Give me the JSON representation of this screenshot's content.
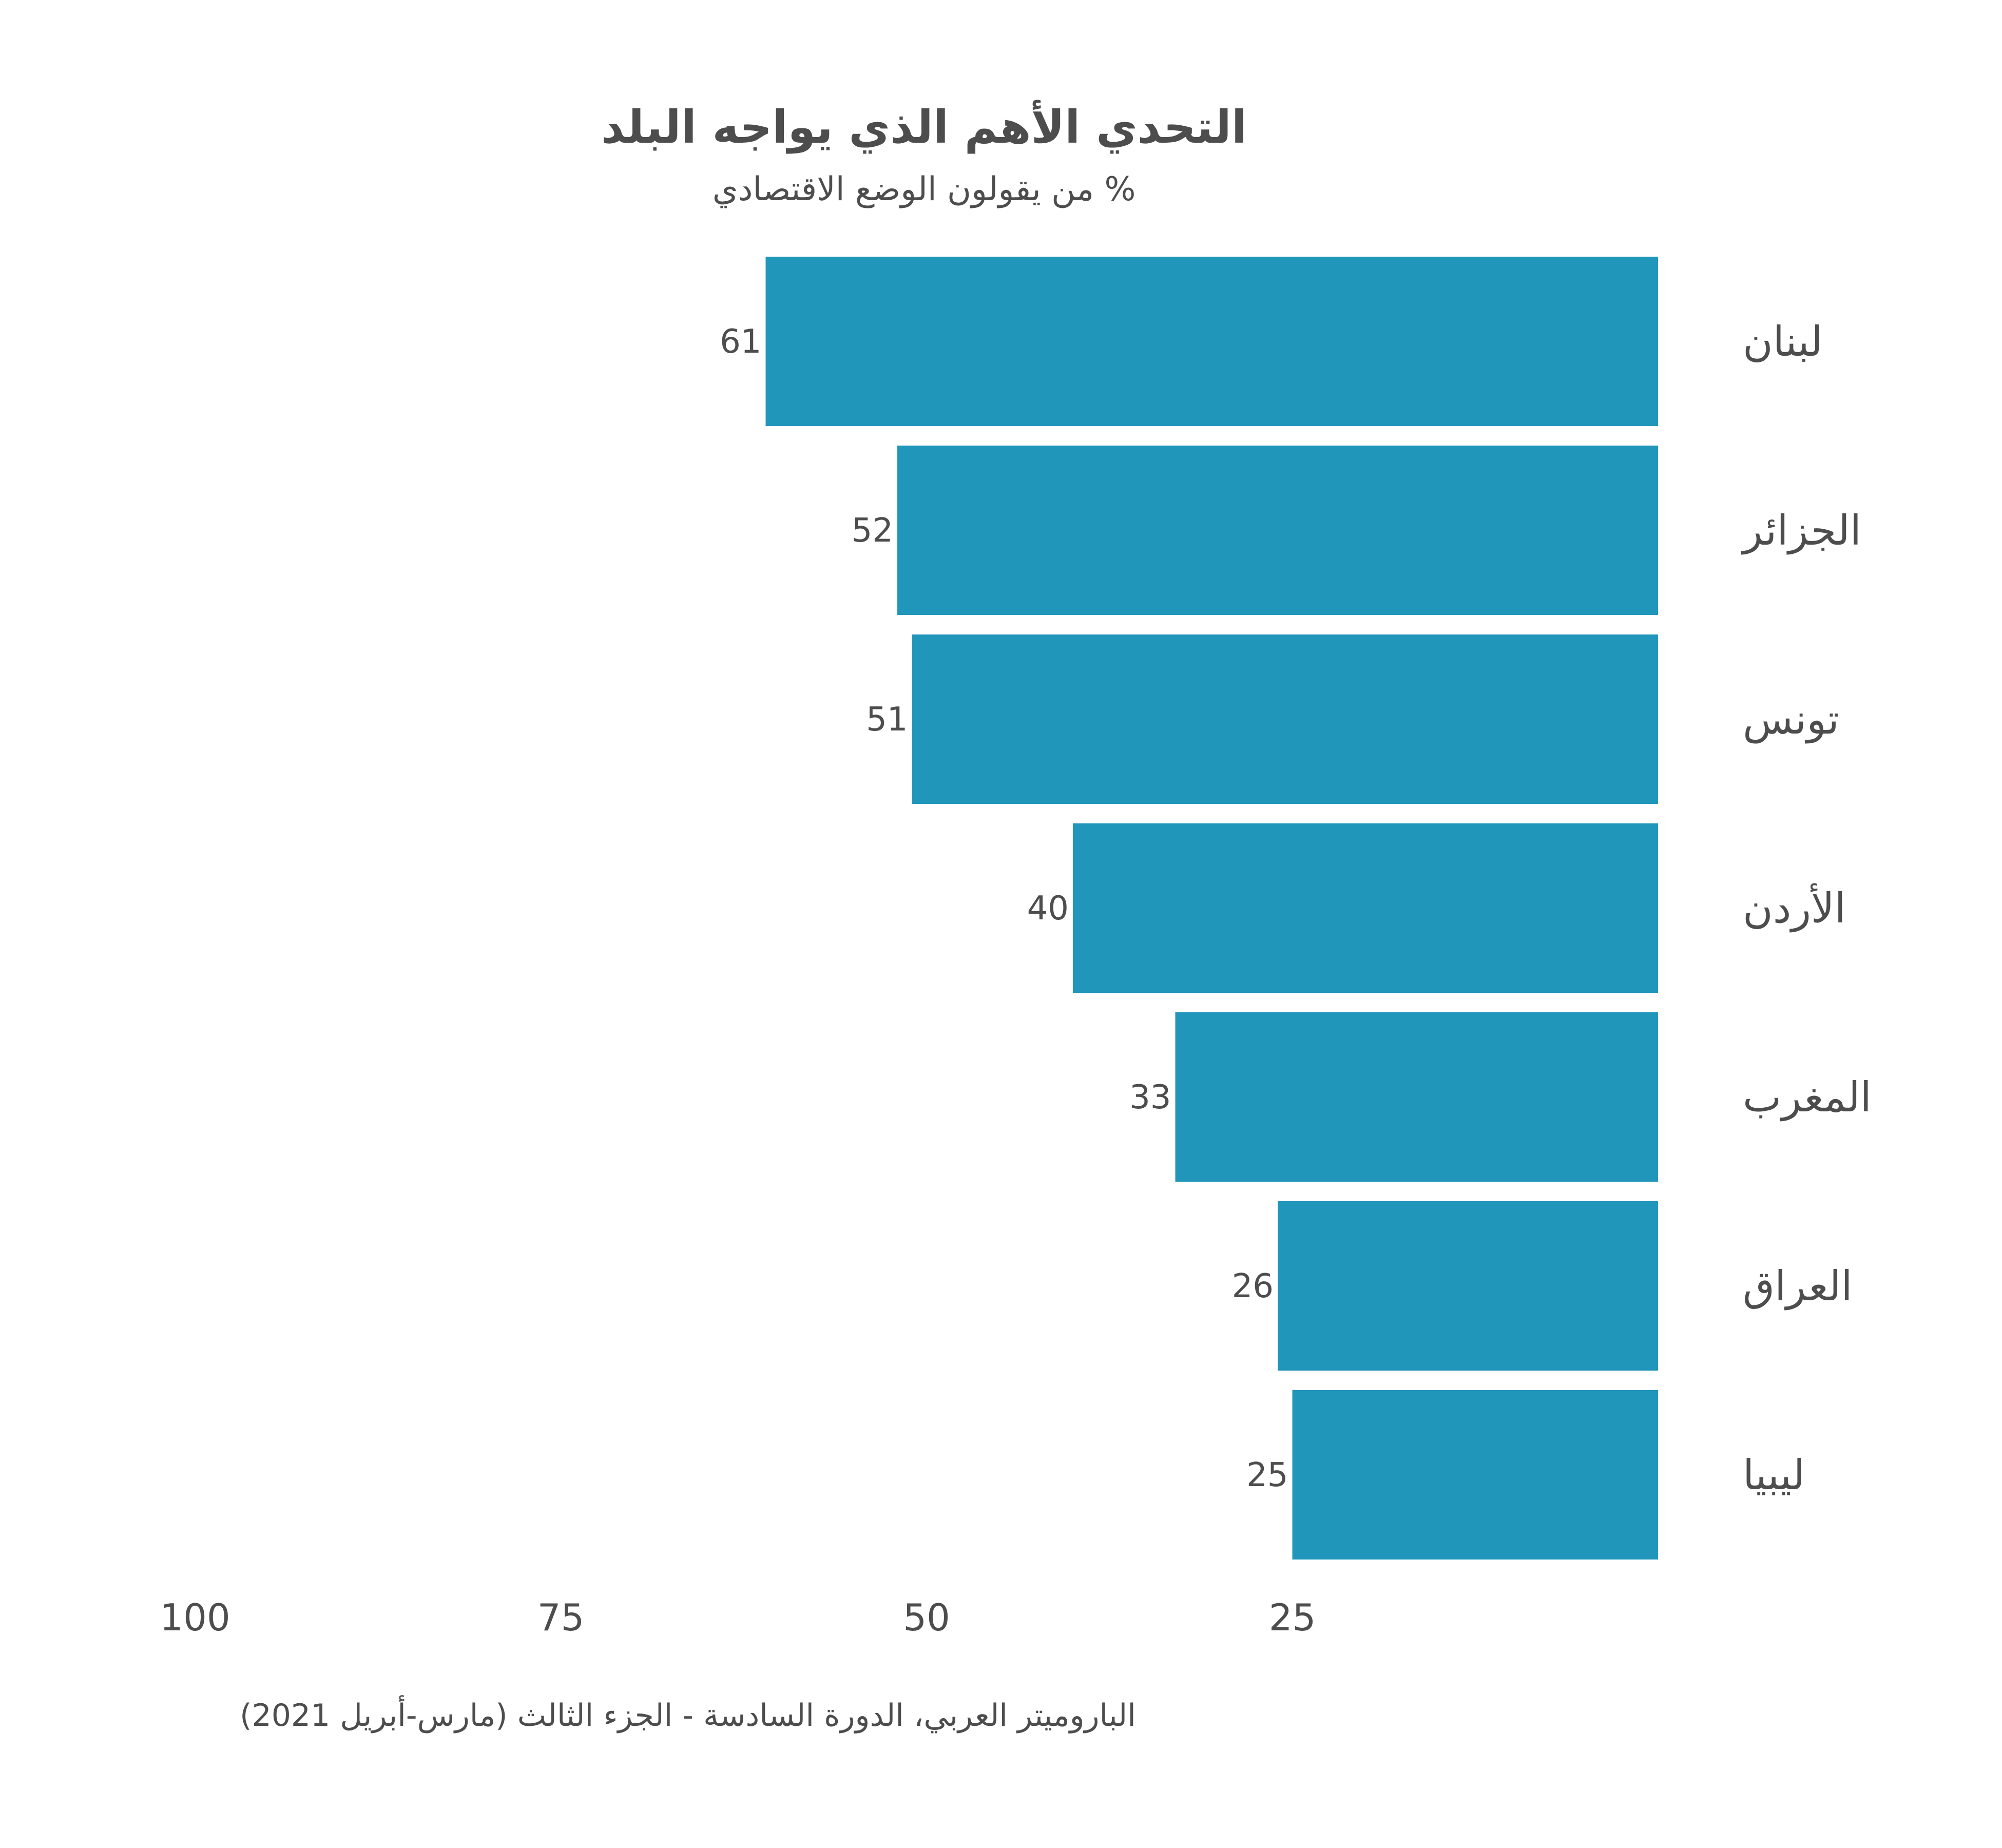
{
  "chart_data": {
    "type": "bar",
    "orientation": "horizontal",
    "x_axis_reversed": true,
    "title": "التحدي الأهم الذي يواجه البلد",
    "subtitle": "% من يقولون الوضع الاقتصادي",
    "categories": [
      "لبنان",
      "الجزائر",
      "تونس",
      "الأردن",
      "المغرب",
      "العراق",
      "ليبيا"
    ],
    "values": [
      61,
      52,
      51,
      40,
      33,
      26,
      25
    ],
    "xlim": [
      0,
      100
    ],
    "x_ticks": [
      100,
      75,
      50,
      25
    ],
    "x_tick_labels": [
      "100",
      "75",
      "50",
      "25"
    ],
    "grid": false,
    "legend": "none",
    "bar_color": "#2196bb",
    "text_color": "#4d4d4d",
    "caption": "الباروميتر العربي، الدورة السادسة - الجزء الثالث (مارس-أبريل 2021)"
  }
}
